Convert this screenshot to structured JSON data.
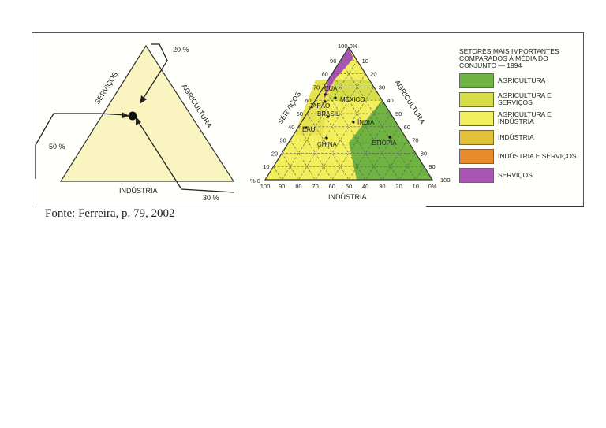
{
  "left_diagram": {
    "label_servicos": "SERVIÇOS",
    "label_agricultura": "AGRICULTURA",
    "label_industria": "INDÚSTRIA",
    "pct_agricultura": "20 %",
    "pct_servicos": "50 %",
    "pct_industria": "30 %"
  },
  "right_diagram": {
    "label_servicos": "SERVIÇOS",
    "label_agricultura": "AGRICULTURA",
    "label_industria": "INDÚSTRIA",
    "top_label": "100 0%",
    "pct_zero": "% 0",
    "ticks_left": [
      "90",
      "80",
      "70",
      "60",
      "50",
      "40",
      "30",
      "20",
      "10"
    ],
    "ticks_right": [
      "10",
      "20",
      "30",
      "40",
      "50",
      "60",
      "70",
      "80",
      "90"
    ],
    "ticks_bottom": [
      "100",
      "90",
      "80",
      "70",
      "60",
      "50",
      "40",
      "30",
      "20",
      "10",
      "0%"
    ],
    "right_bottom_label": "100",
    "countries": [
      "EUA",
      "JAPÃO",
      "MÉXICO",
      "BRASIL",
      "ÍNDIA",
      "EAU",
      "CHINA",
      "ETIÓPIA"
    ]
  },
  "legend": {
    "title": "SETORES MAIS IMPORTANTES COMPARADOS À MÉDIA DO CONJUNTO — 1994",
    "items": [
      {
        "label": "AGRICULTURA",
        "color": "#6fb443"
      },
      {
        "label": "AGRICULTURA E SERVIÇOS",
        "color": "#d5dc4a"
      },
      {
        "label": "AGRICULTURA E INDÚSTRIA",
        "color": "#f2ee5c"
      },
      {
        "label": "INDÚSTRIA",
        "color": "#e2c23c"
      },
      {
        "label": "INDÚSTRIA E SERVIÇOS",
        "color": "#e98a2c"
      },
      {
        "label": "SERVIÇOS",
        "color": "#a955b4"
      }
    ]
  },
  "caption": "Fonte: Ferreira, p. 79, 2002"
}
